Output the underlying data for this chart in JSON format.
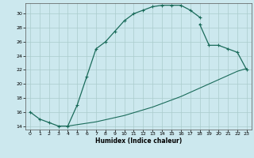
{
  "xlabel": "Humidex (Indice chaleur)",
  "bg_color": "#cce8ee",
  "grid_color": "#aacccc",
  "line_color": "#1a6b5a",
  "xlim": [
    -0.5,
    23.5
  ],
  "ylim": [
    13.5,
    31.5
  ],
  "xticks": [
    0,
    1,
    2,
    3,
    4,
    5,
    6,
    7,
    8,
    9,
    10,
    11,
    12,
    13,
    14,
    15,
    16,
    17,
    18,
    19,
    20,
    21,
    22,
    23
  ],
  "yticks": [
    14,
    16,
    18,
    20,
    22,
    24,
    26,
    28,
    30
  ],
  "curve1_x": [
    0,
    1,
    2,
    3,
    4,
    5,
    6,
    7,
    8,
    9,
    10,
    11,
    12,
    13,
    14,
    15,
    16,
    17,
    18
  ],
  "curve1_y": [
    16.0,
    15.0,
    14.5,
    14.0,
    14.0,
    17.0,
    21.0,
    25.0,
    26.0,
    27.5,
    29.0,
    30.0,
    30.5,
    31.0,
    31.2,
    31.2,
    31.2,
    30.5,
    29.5
  ],
  "curve2_x": [
    18,
    19,
    20,
    21,
    22,
    23
  ],
  "curve2_y": [
    28.5,
    25.5,
    25.5,
    25.0,
    24.5,
    22.0
  ],
  "curve3_x": [
    3,
    4,
    5,
    6,
    7,
    8,
    9,
    10,
    11,
    12,
    13,
    14,
    15,
    16,
    17,
    18,
    19,
    20,
    21,
    22,
    23
  ],
  "curve3_y": [
    14.0,
    14.0,
    14.2,
    14.4,
    14.6,
    14.9,
    15.2,
    15.5,
    15.9,
    16.3,
    16.7,
    17.2,
    17.7,
    18.2,
    18.8,
    19.4,
    20.0,
    20.6,
    21.2,
    21.8,
    22.2
  ]
}
